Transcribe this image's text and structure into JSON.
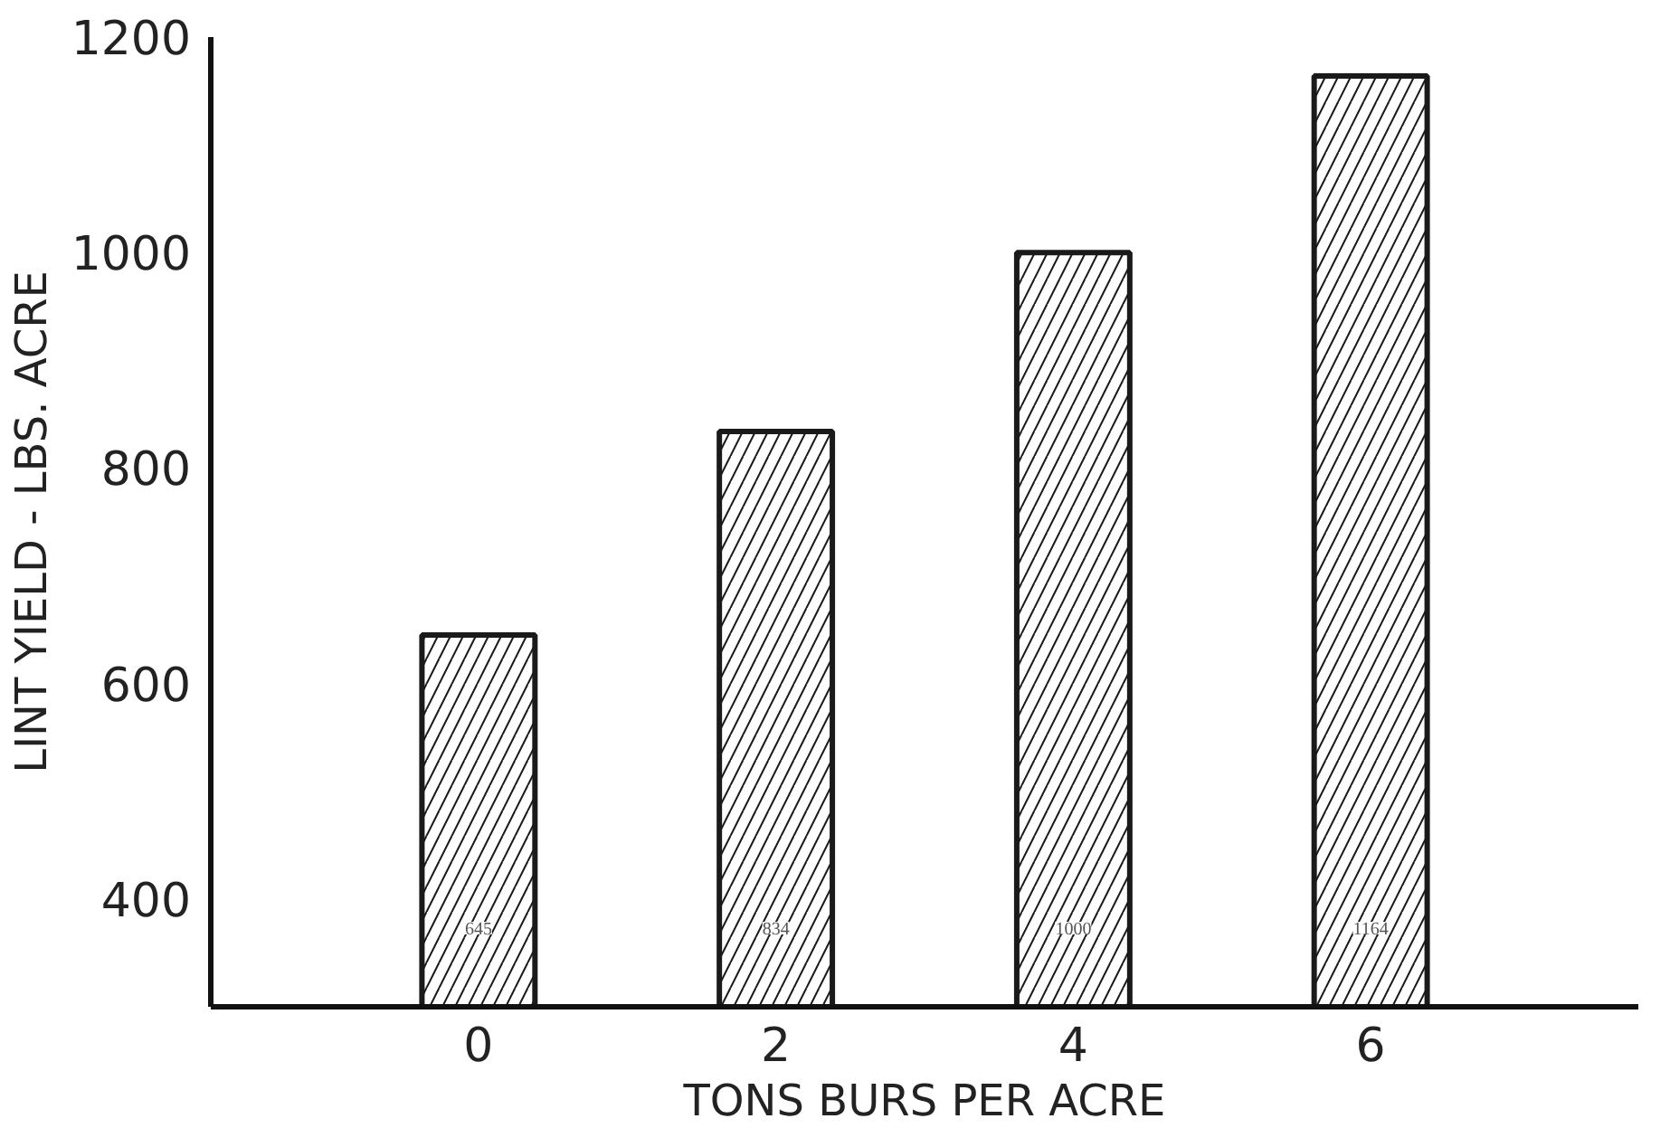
{
  "chart_data": {
    "type": "bar",
    "xlabel": "TONS BURS PER ACRE",
    "ylabel": "LINT YIELD - LBS. ACRE",
    "categories": [
      "0",
      "2",
      "4",
      "6"
    ],
    "values": [
      645,
      834,
      1000,
      1164
    ],
    "color": "#1a1a1a",
    "data_labels": true,
    "ylim": [
      300,
      1200
    ],
    "yticks": [
      400,
      600,
      800,
      1000,
      1200
    ],
    "grid": false
  }
}
